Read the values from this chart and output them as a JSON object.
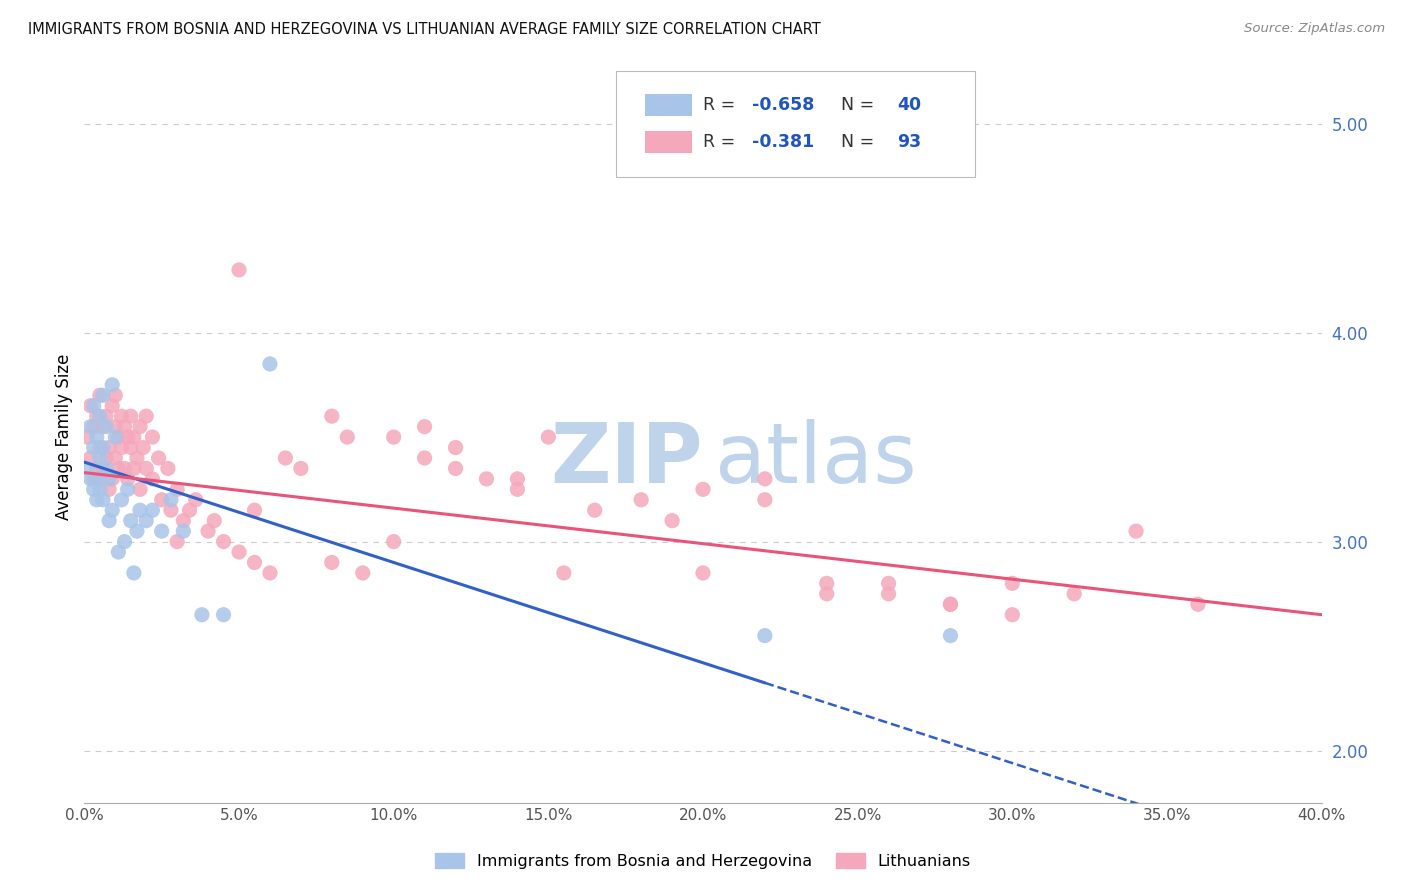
{
  "title": "IMMIGRANTS FROM BOSNIA AND HERZEGOVINA VS LITHUANIAN AVERAGE FAMILY SIZE CORRELATION CHART",
  "source": "Source: ZipAtlas.com",
  "ylabel": "Average Family Size",
  "right_yticks": [
    2.0,
    3.0,
    4.0,
    5.0
  ],
  "xlim": [
    0.0,
    0.4
  ],
  "ylim": [
    1.75,
    5.25
  ],
  "bosnia_R": -0.658,
  "bosnia_N": 40,
  "lithuanian_R": -0.381,
  "lithuanian_N": 93,
  "bosnia_color": "#a8c4e8",
  "lithuanian_color": "#f5a8bb",
  "bosnia_line_color": "#3060c8",
  "lithuanian_line_color": "#e8547a",
  "bosnia_line_intercept": 3.38,
  "bosnia_line_slope": -4.8,
  "bosnian_line_end_solid": 0.22,
  "lithuanian_line_intercept": 3.33,
  "lithuanian_line_slope": -1.7,
  "bosnia_scatter_x": [
    0.001,
    0.002,
    0.002,
    0.003,
    0.003,
    0.003,
    0.004,
    0.004,
    0.004,
    0.005,
    0.005,
    0.005,
    0.006,
    0.006,
    0.006,
    0.007,
    0.007,
    0.008,
    0.008,
    0.009,
    0.009,
    0.01,
    0.011,
    0.012,
    0.013,
    0.014,
    0.015,
    0.016,
    0.017,
    0.018,
    0.02,
    0.022,
    0.025,
    0.028,
    0.032,
    0.038,
    0.045,
    0.06,
    0.22,
    0.28
  ],
  "bosnia_scatter_y": [
    3.35,
    3.55,
    3.3,
    3.65,
    3.45,
    3.25,
    3.5,
    3.3,
    3.2,
    3.6,
    3.4,
    3.25,
    3.7,
    3.45,
    3.2,
    3.55,
    3.35,
    3.3,
    3.1,
    3.75,
    3.15,
    3.5,
    2.95,
    3.2,
    3.0,
    3.25,
    3.1,
    2.85,
    3.05,
    3.15,
    3.1,
    3.15,
    3.05,
    3.2,
    3.05,
    2.65,
    2.65,
    3.85,
    2.55,
    2.55
  ],
  "lithuanian_scatter_x": [
    0.001,
    0.002,
    0.002,
    0.003,
    0.003,
    0.004,
    0.004,
    0.005,
    0.005,
    0.005,
    0.006,
    0.006,
    0.007,
    0.007,
    0.008,
    0.008,
    0.009,
    0.009,
    0.01,
    0.01,
    0.01,
    0.011,
    0.011,
    0.012,
    0.012,
    0.013,
    0.013,
    0.014,
    0.014,
    0.015,
    0.015,
    0.016,
    0.016,
    0.017,
    0.018,
    0.018,
    0.019,
    0.02,
    0.02,
    0.022,
    0.022,
    0.024,
    0.025,
    0.027,
    0.028,
    0.03,
    0.032,
    0.034,
    0.036,
    0.04,
    0.042,
    0.045,
    0.05,
    0.055,
    0.06,
    0.065,
    0.07,
    0.08,
    0.09,
    0.1,
    0.11,
    0.12,
    0.13,
    0.14,
    0.155,
    0.165,
    0.18,
    0.2,
    0.22,
    0.24,
    0.26,
    0.28,
    0.1,
    0.12,
    0.14,
    0.2,
    0.24,
    0.28,
    0.3,
    0.32,
    0.05,
    0.08,
    0.11,
    0.15,
    0.19,
    0.22,
    0.26,
    0.3,
    0.34,
    0.36,
    0.03,
    0.055,
    0.085
  ],
  "lithuanian_scatter_y": [
    3.5,
    3.4,
    3.65,
    3.3,
    3.55,
    3.6,
    3.35,
    3.45,
    3.7,
    3.3,
    3.55,
    3.35,
    3.6,
    3.4,
    3.45,
    3.25,
    3.65,
    3.3,
    3.55,
    3.4,
    3.7,
    3.5,
    3.35,
    3.6,
    3.45,
    3.55,
    3.35,
    3.5,
    3.3,
    3.45,
    3.6,
    3.35,
    3.5,
    3.4,
    3.55,
    3.25,
    3.45,
    3.35,
    3.6,
    3.3,
    3.5,
    3.4,
    3.2,
    3.35,
    3.15,
    3.25,
    3.1,
    3.15,
    3.2,
    3.05,
    3.1,
    3.0,
    2.95,
    2.9,
    2.85,
    3.4,
    3.35,
    2.9,
    2.85,
    3.0,
    3.4,
    3.35,
    3.3,
    3.25,
    2.85,
    3.15,
    3.2,
    3.25,
    3.2,
    2.8,
    2.75,
    2.7,
    3.5,
    3.45,
    3.3,
    2.85,
    2.75,
    2.7,
    2.65,
    2.75,
    4.3,
    3.6,
    3.55,
    3.5,
    3.1,
    3.3,
    2.8,
    2.8,
    3.05,
    2.7,
    3.0,
    3.15,
    3.5
  ],
  "watermark_zip": "ZIP",
  "watermark_atlas": "atlas",
  "watermark_color_zip": "#c5d8ee",
  "watermark_color_atlas": "#c5d8ee",
  "background_color": "#ffffff",
  "grid_color": "#cccccc"
}
